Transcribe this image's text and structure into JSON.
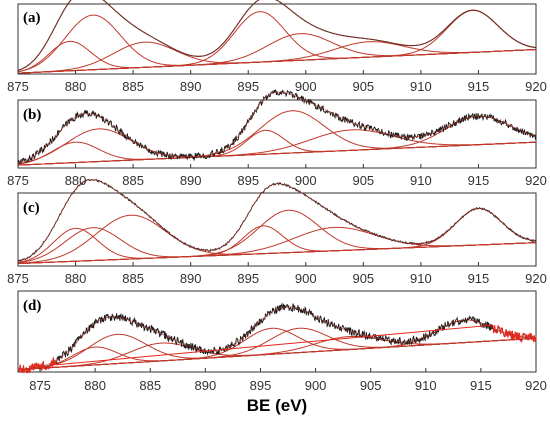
{
  "colors": {
    "data": "#1a1a1a",
    "fit": "#c0392b",
    "background_line": "#c0392b",
    "noise_d": "#e8261c",
    "frame": "#333333"
  },
  "xaxis": {
    "title": "BE (eV)",
    "range": [
      875,
      920
    ],
    "ticks": [
      875,
      880,
      885,
      890,
      895,
      900,
      905,
      910,
      915,
      920
    ]
  },
  "chart_data": [
    {
      "type": "line",
      "panel": "(a)",
      "xlim": [
        875,
        920
      ],
      "background": [
        [
          876,
          0.02
        ],
        [
          920,
          0.35
        ]
      ],
      "components": [
        {
          "center": 879.5,
          "height": 0.42,
          "width": 1.8
        },
        {
          "center": 881.5,
          "height": 0.78,
          "width": 2.4
        },
        {
          "center": 886.0,
          "height": 0.36,
          "width": 2.7
        },
        {
          "center": 896.0,
          "height": 0.72,
          "width": 2.2
        },
        {
          "center": 899.5,
          "height": 0.38,
          "width": 2.8
        },
        {
          "center": 905.5,
          "height": 0.22,
          "width": 3.0
        },
        {
          "center": 914.5,
          "height": 0.6,
          "width": 2.2
        }
      ],
      "noise": 0.0,
      "trace_color": "#1a1a1a"
    },
    {
      "type": "line",
      "panel": "(b)",
      "xlim": [
        875,
        920
      ],
      "background": [
        [
          876,
          0.05
        ],
        [
          920,
          0.38
        ]
      ],
      "components": [
        {
          "center": 880.0,
          "height": 0.3,
          "width": 2.0
        },
        {
          "center": 882.0,
          "height": 0.48,
          "width": 2.8
        },
        {
          "center": 896.5,
          "height": 0.35,
          "width": 1.6
        },
        {
          "center": 898.8,
          "height": 0.62,
          "width": 2.8
        },
        {
          "center": 904.0,
          "height": 0.3,
          "width": 3.6
        },
        {
          "center": 915.0,
          "height": 0.42,
          "width": 2.8
        }
      ],
      "noise": 0.05,
      "trace_color": "#1a1a1a"
    },
    {
      "type": "line",
      "panel": "(c)",
      "xlim": [
        875,
        920
      ],
      "background": [
        [
          876,
          0.04
        ],
        [
          920,
          0.32
        ]
      ],
      "components": [
        {
          "center": 880.0,
          "height": 0.45,
          "width": 1.9
        },
        {
          "center": 881.5,
          "height": 0.45,
          "width": 2.4
        },
        {
          "center": 884.8,
          "height": 0.6,
          "width": 3.0
        },
        {
          "center": 896.3,
          "height": 0.38,
          "width": 1.7
        },
        {
          "center": 898.5,
          "height": 0.58,
          "width": 2.6
        },
        {
          "center": 902.5,
          "height": 0.32,
          "width": 3.5
        },
        {
          "center": 915.0,
          "height": 0.5,
          "width": 2.0
        }
      ],
      "noise": 0.012,
      "trace_color": "#1a1a1a"
    },
    {
      "type": "line",
      "panel": "(d)",
      "xlim": [
        873,
        920
      ],
      "background": [
        [
          873,
          0.03
        ],
        [
          918,
          0.4
        ]
      ],
      "components": [
        {
          "center": 880.0,
          "height": 0.22,
          "width": 2.0
        },
        {
          "center": 882.0,
          "height": 0.36,
          "width": 2.6
        },
        {
          "center": 886.0,
          "height": 0.22,
          "width": 2.8
        },
        {
          "center": 896.0,
          "height": 0.32,
          "width": 2.4
        },
        {
          "center": 898.5,
          "height": 0.3,
          "width": 2.6
        },
        {
          "center": 903.0,
          "height": 0.16,
          "width": 3.0
        },
        {
          "center": 913.5,
          "height": 0.28,
          "width": 2.4
        }
      ],
      "noise": 0.05,
      "trace_color": "#1a1a1a",
      "ticks": [
        875,
        880,
        885,
        890,
        895,
        900,
        905,
        910,
        915,
        920
      ]
    }
  ]
}
